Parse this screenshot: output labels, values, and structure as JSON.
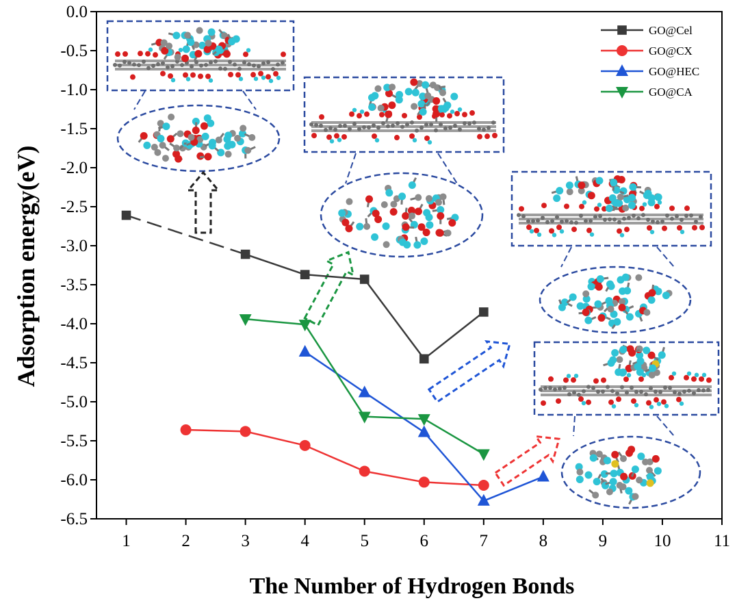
{
  "chart_data": {
    "type": "line",
    "xlabel": "The Number of Hydrogen Bonds",
    "ylabel": "Adsorption energy(eV)",
    "xlim": [
      0.5,
      11
    ],
    "ylim": [
      -6.5,
      0.0
    ],
    "xticks": [
      "1",
      "2",
      "3",
      "4",
      "5",
      "6",
      "7",
      "8",
      "9",
      "10",
      "11"
    ],
    "yticks": [
      "0.0",
      "-0.5",
      "-1.0",
      "-1.5",
      "-2.0",
      "-2.5",
      "-3.0",
      "-3.5",
      "-4.0",
      "-4.5",
      "-5.0",
      "-5.5",
      "-6.0",
      "-6.5"
    ],
    "legend_position": "top-right",
    "series": [
      {
        "name": "GO@Cel",
        "color": "#3a3a3a",
        "marker": "square",
        "x": [
          1,
          3,
          4,
          5,
          6,
          7
        ],
        "y": [
          -2.61,
          -3.11,
          -3.37,
          -3.43,
          -4.45,
          -3.85
        ],
        "dashed_first_segment": true
      },
      {
        "name": "GO@CX",
        "color": "#ee3333",
        "marker": "circle",
        "x": [
          2,
          3,
          4,
          5,
          6,
          7
        ],
        "y": [
          -5.36,
          -5.38,
          -5.56,
          -5.89,
          -6.03,
          -6.07
        ]
      },
      {
        "name": "GO@HEC",
        "color": "#1f55d6",
        "marker": "triangle-up",
        "x": [
          4,
          5,
          6,
          7,
          8
        ],
        "y": [
          -4.36,
          -4.88,
          -5.39,
          -6.27,
          -5.96
        ]
      },
      {
        "name": "GO@CA",
        "color": "#1a9641",
        "marker": "triangle-down",
        "x": [
          3,
          4,
          5,
          6,
          7
        ],
        "y": [
          -3.94,
          -4.01,
          -5.19,
          -5.22,
          -5.67
        ]
      }
    ],
    "annotations": [
      "inset molecular structure: GO@Cel",
      "inset molecular structure: GO@CA",
      "inset molecular structure: GO@HEC",
      "inset molecular structure: GO@CX"
    ]
  },
  "colors": {
    "inset_border": "#2b4aa0",
    "arrow_cel": "#222222",
    "arrow_ca": "#1a9641",
    "arrow_hec": "#1f55d6",
    "arrow_cx": "#ee3333",
    "atom_carbon": "#8c8c8c",
    "atom_oxygen": "#d81e1e",
    "atom_hydrogen": "#2fc3d6",
    "atom_sulfur": "#e0c020"
  }
}
